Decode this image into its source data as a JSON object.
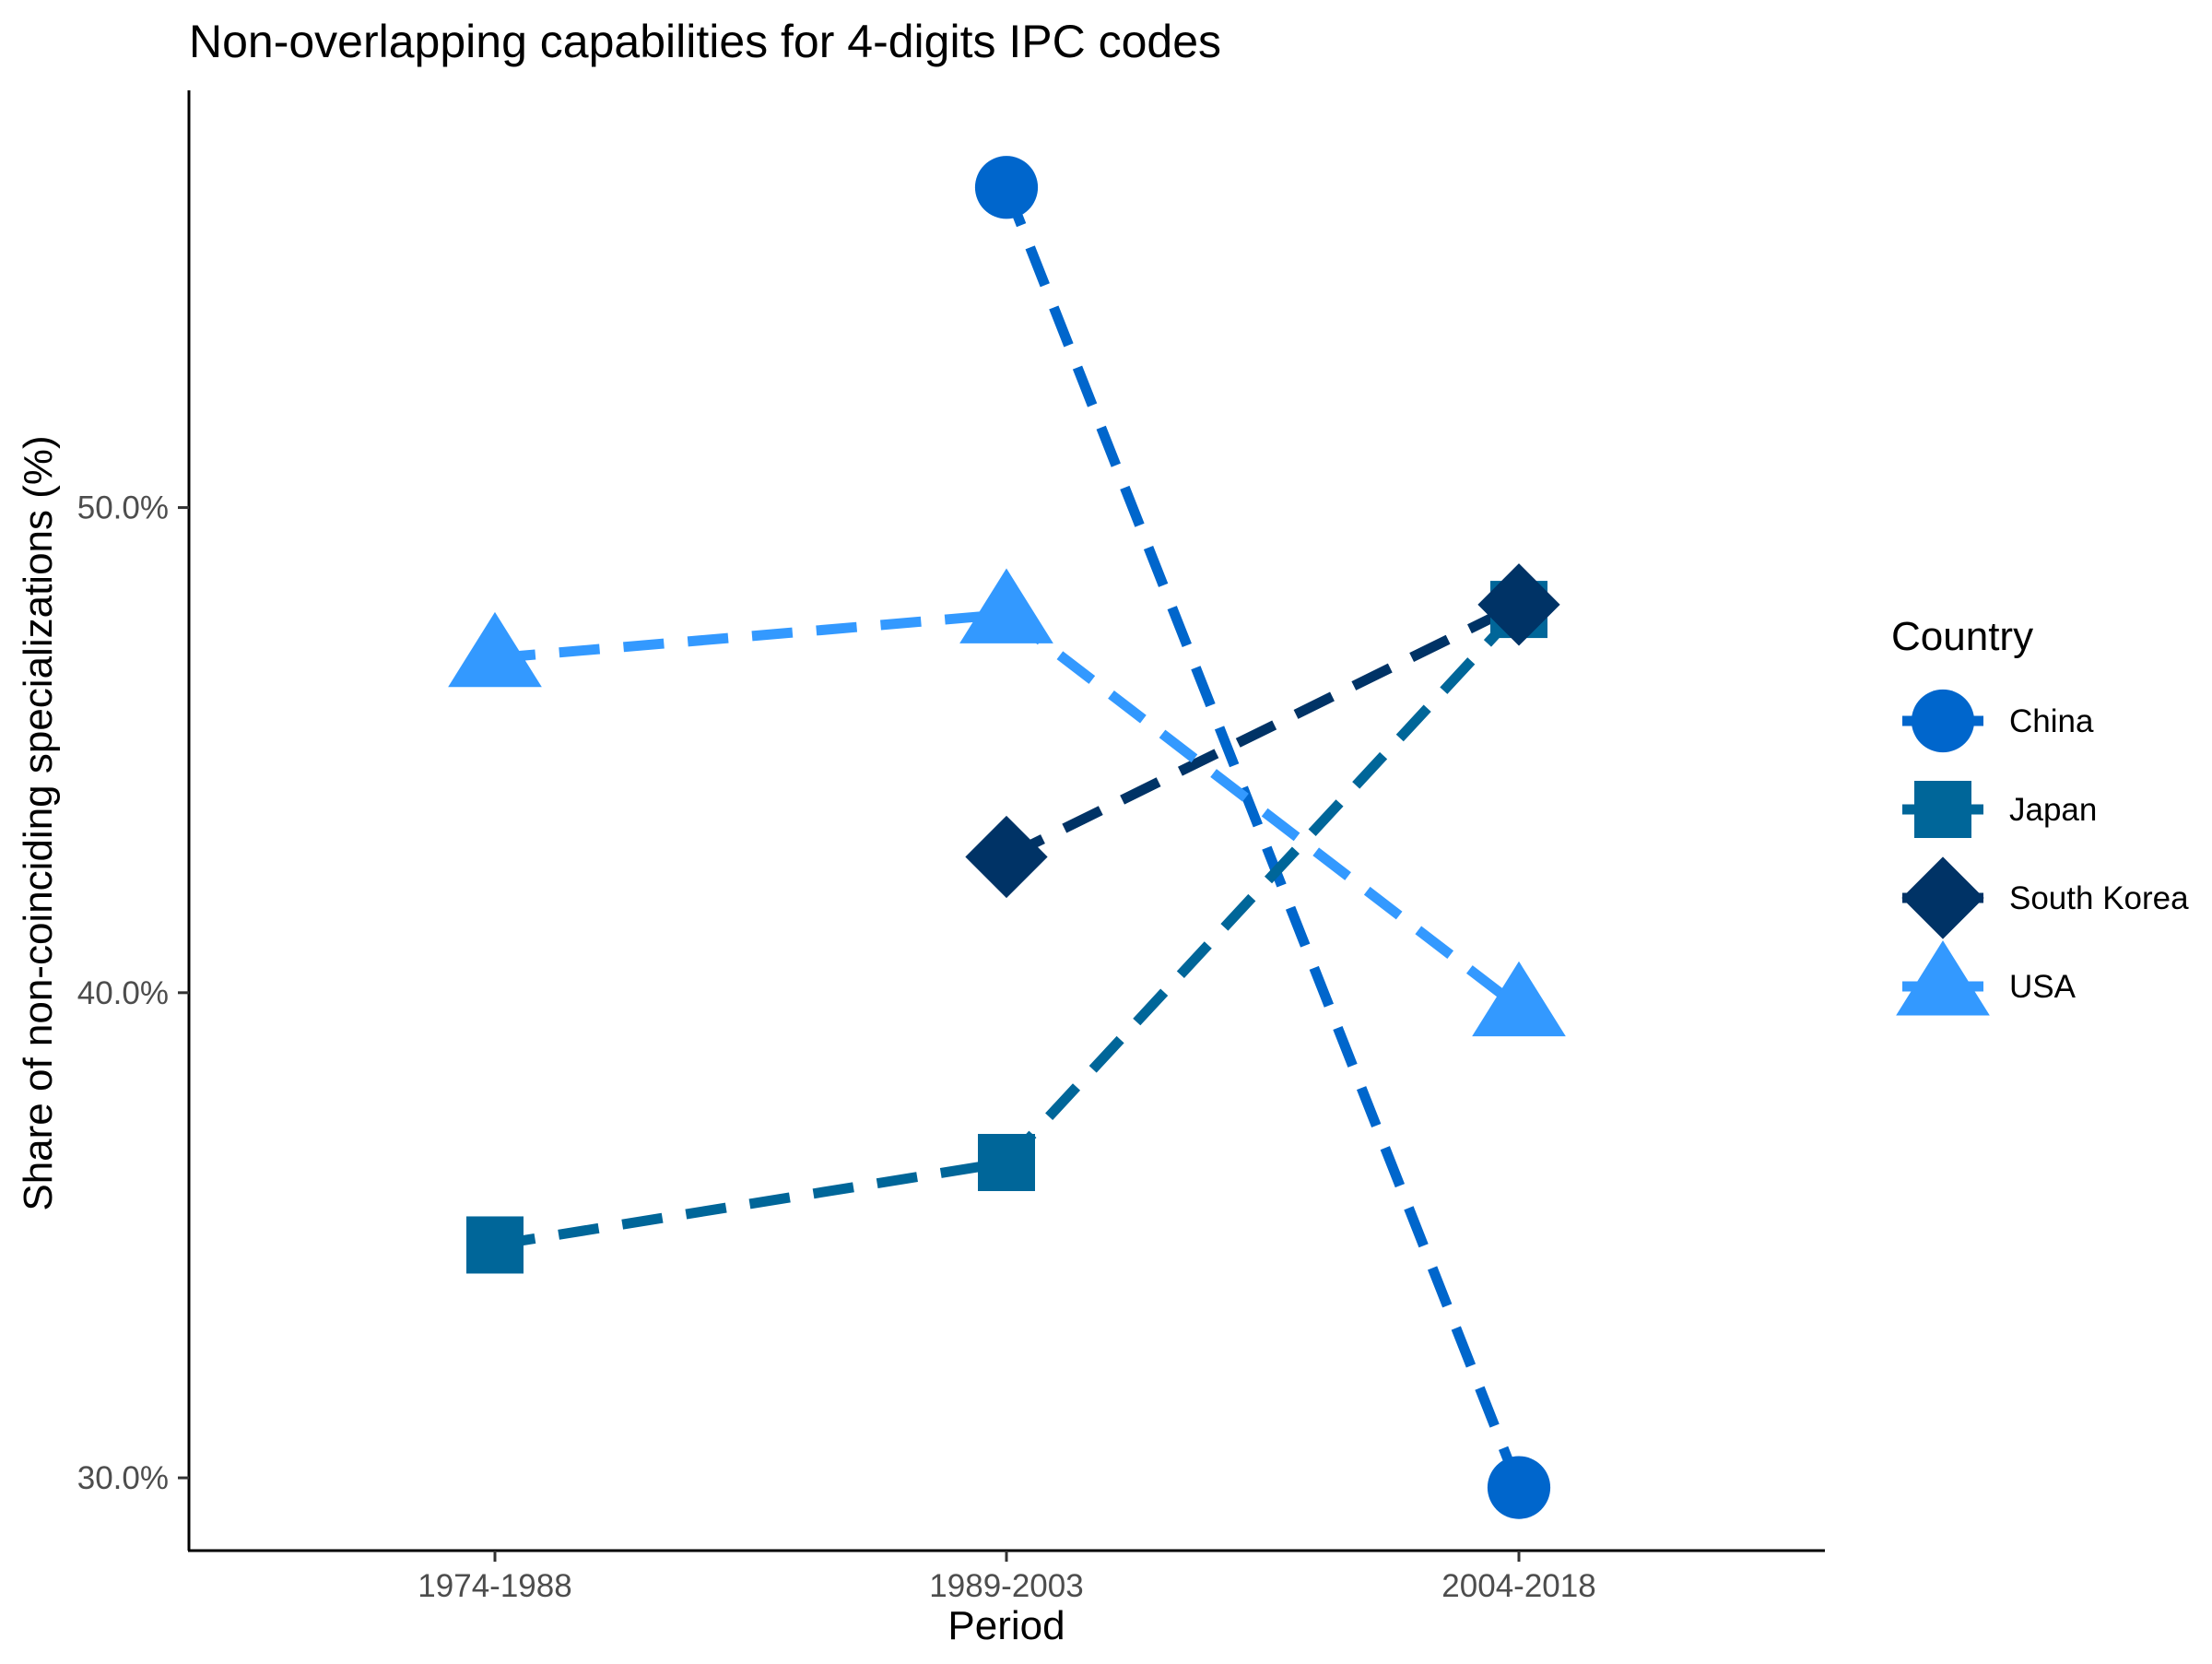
{
  "chart_data": {
    "type": "line",
    "title": "Non-overlapping capabilities for 4-digits IPC codes",
    "xlabel": "Period",
    "ylabel": "Share of non-coinciding specializations (%)",
    "categories": [
      "1974-1988",
      "1989-2003",
      "2004-2018"
    ],
    "y_ticks": [
      {
        "value": 30,
        "label": "30.0%"
      },
      {
        "value": 40,
        "label": "40.0%"
      },
      {
        "value": 50,
        "label": "50.0%"
      }
    ],
    "ylim": [
      28.5,
      58.6
    ],
    "grid": false,
    "line_style": "dashed",
    "legend": {
      "title": "Country",
      "position": "right"
    },
    "series": [
      {
        "name": "China",
        "color": "#0066CC",
        "shape": "circle",
        "values": [
          null,
          56.6,
          29.8
        ]
      },
      {
        "name": "Japan",
        "color": "#006699",
        "shape": "square",
        "values": [
          34.8,
          36.5,
          47.9
        ]
      },
      {
        "name": "South Korea",
        "color": "#003366",
        "shape": "diamond",
        "values": [
          null,
          42.8,
          48.0
        ]
      },
      {
        "name": "USA",
        "color": "#3399FF",
        "shape": "triangle",
        "values": [
          46.9,
          47.8,
          39.7
        ]
      }
    ]
  }
}
